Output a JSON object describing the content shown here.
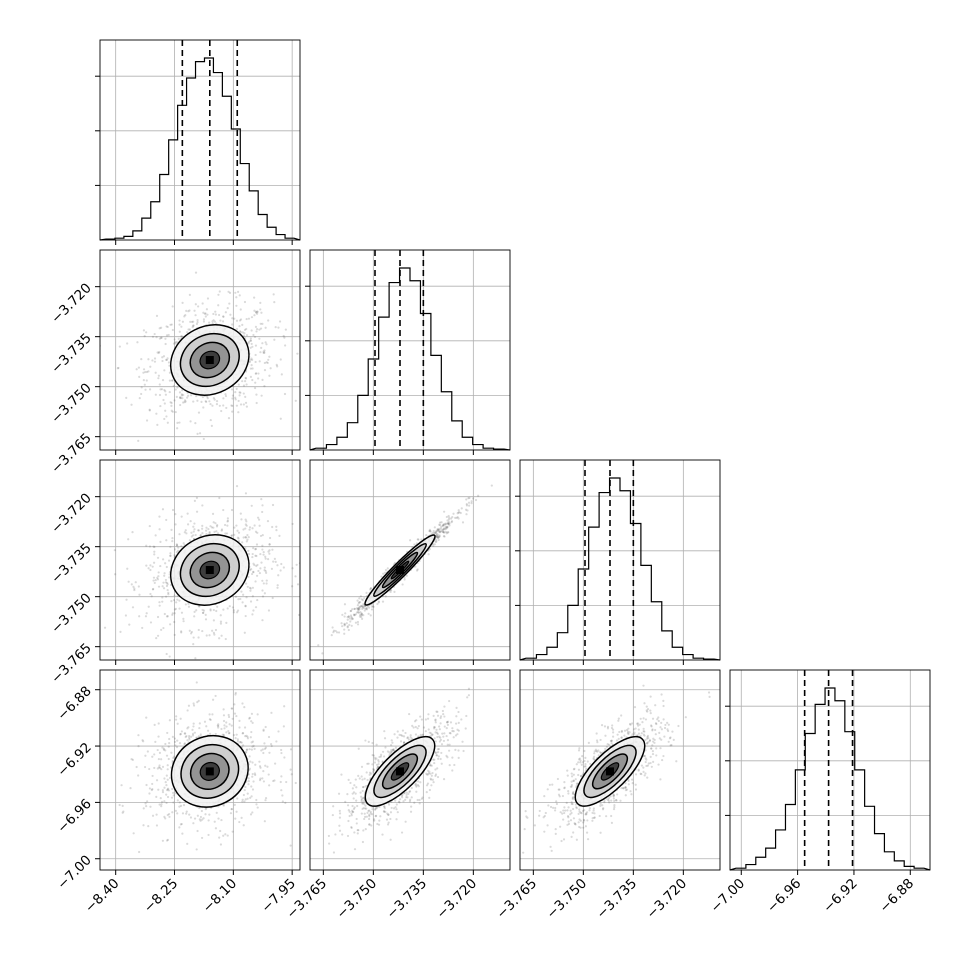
{
  "chart_data": {
    "type": "corner",
    "grid": true,
    "params": [
      {
        "ticks": [
          -8.4,
          -8.25,
          -8.1,
          -7.95
        ],
        "tick_labels": [
          "−8.40",
          "−8.25",
          "−8.10",
          "−7.95"
        ],
        "range": [
          -8.44,
          -7.93
        ],
        "quantiles": [
          -8.23,
          -8.16,
          -8.09
        ]
      },
      {
        "ticks": [
          -3.765,
          -3.75,
          -3.735,
          -3.72
        ],
        "tick_labels": [
          "−3.765",
          "−3.750",
          "−3.735",
          "−3.720"
        ],
        "range": [
          -3.769,
          -3.709
        ],
        "quantiles": [
          -3.7495,
          -3.742,
          -3.735
        ]
      },
      {
        "ticks": [
          -3.765,
          -3.75,
          -3.735,
          -3.72
        ],
        "tick_labels": [
          "−3.765",
          "−3.750",
          "−3.735",
          "−3.720"
        ],
        "range": [
          -3.769,
          -3.709
        ],
        "quantiles": [
          -3.7495,
          -3.742,
          -3.735
        ]
      },
      {
        "ticks": [
          -7.0,
          -6.96,
          -6.92,
          -6.88
        ],
        "tick_labels": [
          "−7.00",
          "−6.96",
          "−6.92",
          "−6.88"
        ],
        "range": [
          -7.008,
          -6.866
        ],
        "quantiles": [
          -6.955,
          -6.938,
          -6.921
        ]
      }
    ],
    "histograms": [
      [
        0.005,
        0.01,
        0.02,
        0.05,
        0.12,
        0.21,
        0.36,
        0.55,
        0.74,
        0.89,
        0.98,
        1.0,
        0.92,
        0.79,
        0.61,
        0.42,
        0.27,
        0.14,
        0.07,
        0.03,
        0.01
      ],
      [
        0.01,
        0.03,
        0.07,
        0.15,
        0.3,
        0.5,
        0.73,
        0.92,
        1.0,
        0.93,
        0.75,
        0.52,
        0.32,
        0.16,
        0.07,
        0.03,
        0.01,
        0.005
      ],
      [
        0.01,
        0.03,
        0.07,
        0.15,
        0.3,
        0.5,
        0.73,
        0.92,
        1.0,
        0.93,
        0.75,
        0.52,
        0.32,
        0.16,
        0.07,
        0.03,
        0.01,
        0.005
      ],
      [
        0.01,
        0.03,
        0.07,
        0.12,
        0.22,
        0.36,
        0.55,
        0.75,
        0.91,
        1.0,
        0.93,
        0.76,
        0.55,
        0.35,
        0.2,
        0.1,
        0.05,
        0.02,
        0.01
      ]
    ],
    "correlations": {
      "1-0": 0.18,
      "2-0": 0.18,
      "2-1": 0.98,
      "3-0": 0.12,
      "3-1": 0.74,
      "3-2": 0.74
    }
  }
}
